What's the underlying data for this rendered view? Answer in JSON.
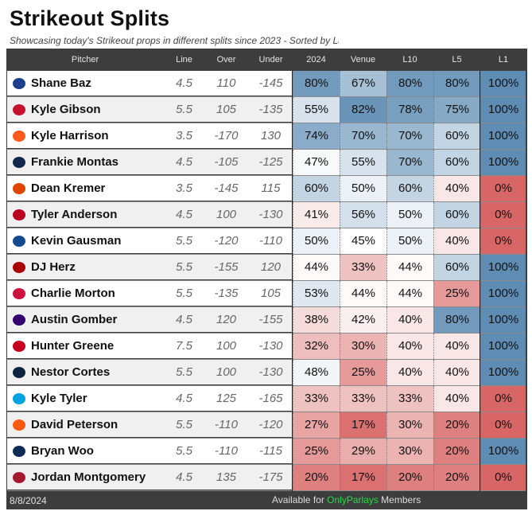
{
  "title": "Strikeout Splits",
  "subtitle": "Showcasing today's Strikeout props in different splits since 2023 - Sorted by Last",
  "columns": {
    "pitcher": "Pitcher",
    "line": "Line",
    "over": "Over",
    "under": "Under",
    "y2024": "2024",
    "venue": "Venue",
    "l10": "L10",
    "l5": "L5",
    "l1": "L1"
  },
  "rows": [
    {
      "name": "Shane Baz",
      "logo": "rays-logo-icon",
      "logo_color": "#1b3f8a",
      "line": "4.5",
      "over": "110",
      "under": "-145",
      "y2024": "80%",
      "venue": "67%",
      "l10": "80%",
      "l5": "80%",
      "l1": "100%"
    },
    {
      "name": "Kyle Gibson",
      "logo": "cardinals-logo-icon",
      "logo_color": "#c4122e",
      "line": "5.5",
      "over": "105",
      "under": "-135",
      "y2024": "55%",
      "venue": "82%",
      "l10": "78%",
      "l5": "75%",
      "l1": "100%"
    },
    {
      "name": "Kyle Harrison",
      "logo": "giants-logo-icon",
      "logo_color": "#fd5a1e",
      "line": "3.5",
      "over": "-170",
      "under": "130",
      "y2024": "74%",
      "venue": "70%",
      "l10": "70%",
      "l5": "60%",
      "l1": "100%"
    },
    {
      "name": "Frankie Montas",
      "logo": "brewers-logo-icon",
      "logo_color": "#12284b",
      "line": "4.5",
      "over": "-105",
      "under": "-125",
      "y2024": "47%",
      "venue": "55%",
      "l10": "70%",
      "l5": "60%",
      "l1": "100%"
    },
    {
      "name": "Dean Kremer",
      "logo": "orioles-logo-icon",
      "logo_color": "#df4601",
      "line": "3.5",
      "over": "-145",
      "under": "115",
      "y2024": "60%",
      "venue": "50%",
      "l10": "60%",
      "l5": "40%",
      "l1": "0%"
    },
    {
      "name": "Tyler Anderson",
      "logo": "angels-logo-icon",
      "logo_color": "#ba0021",
      "line": "4.5",
      "over": "100",
      "under": "-130",
      "y2024": "41%",
      "venue": "56%",
      "l10": "50%",
      "l5": "60%",
      "l1": "0%"
    },
    {
      "name": "Kevin Gausman",
      "logo": "blue-jays-logo-icon",
      "logo_color": "#134a8e",
      "line": "5.5",
      "over": "-120",
      "under": "-110",
      "y2024": "50%",
      "venue": "45%",
      "l10": "50%",
      "l5": "40%",
      "l1": "0%"
    },
    {
      "name": "DJ Herz",
      "logo": "nationals-logo-icon",
      "logo_color": "#ab0003",
      "line": "5.5",
      "over": "-155",
      "under": "120",
      "y2024": "44%",
      "venue": "33%",
      "l10": "44%",
      "l5": "60%",
      "l1": "100%"
    },
    {
      "name": "Charlie Morton",
      "logo": "braves-logo-icon",
      "logo_color": "#ce1141",
      "line": "5.5",
      "over": "-135",
      "under": "105",
      "y2024": "53%",
      "venue": "44%",
      "l10": "44%",
      "l5": "25%",
      "l1": "100%"
    },
    {
      "name": "Austin Gomber",
      "logo": "rockies-logo-icon",
      "logo_color": "#33006f",
      "line": "4.5",
      "over": "120",
      "under": "-155",
      "y2024": "38%",
      "venue": "42%",
      "l10": "40%",
      "l5": "80%",
      "l1": "100%"
    },
    {
      "name": "Hunter Greene",
      "logo": "reds-logo-icon",
      "logo_color": "#c6011f",
      "line": "7.5",
      "over": "100",
      "under": "-130",
      "y2024": "32%",
      "venue": "30%",
      "l10": "40%",
      "l5": "40%",
      "l1": "100%"
    },
    {
      "name": "Nestor Cortes",
      "logo": "yankees-logo-icon",
      "logo_color": "#0c2340",
      "line": "5.5",
      "over": "100",
      "under": "-130",
      "y2024": "48%",
      "venue": "25%",
      "l10": "40%",
      "l5": "40%",
      "l1": "100%"
    },
    {
      "name": "Kyle Tyler",
      "logo": "marlins-logo-icon",
      "logo_color": "#00a3e0",
      "line": "4.5",
      "over": "125",
      "under": "-165",
      "y2024": "33%",
      "venue": "33%",
      "l10": "33%",
      "l5": "40%",
      "l1": "0%"
    },
    {
      "name": "David Peterson",
      "logo": "mets-logo-icon",
      "logo_color": "#ff5910",
      "line": "5.5",
      "over": "-110",
      "under": "-120",
      "y2024": "27%",
      "venue": "17%",
      "l10": "30%",
      "l5": "20%",
      "l1": "0%"
    },
    {
      "name": "Bryan Woo",
      "logo": "mariners-logo-icon",
      "logo_color": "#0c2c56",
      "line": "5.5",
      "over": "-110",
      "under": "-115",
      "y2024": "25%",
      "venue": "29%",
      "l10": "30%",
      "l5": "20%",
      "l1": "100%"
    },
    {
      "name": "Jordan Montgomery",
      "logo": "diamondbacks-logo-icon",
      "logo_color": "#a71930",
      "line": "4.5",
      "over": "135",
      "under": "-175",
      "y2024": "20%",
      "venue": "17%",
      "l10": "20%",
      "l5": "20%",
      "l1": "0%"
    }
  ],
  "footer": {
    "date": "8/8/2024",
    "note_prefix": "Available for ",
    "brand": "OnlyParlays",
    "note_suffix": " Members"
  },
  "colors": {
    "high": "#5e8cb3",
    "mid": "#ffffff",
    "low": "#d86666",
    "brand": "#22dd44"
  }
}
